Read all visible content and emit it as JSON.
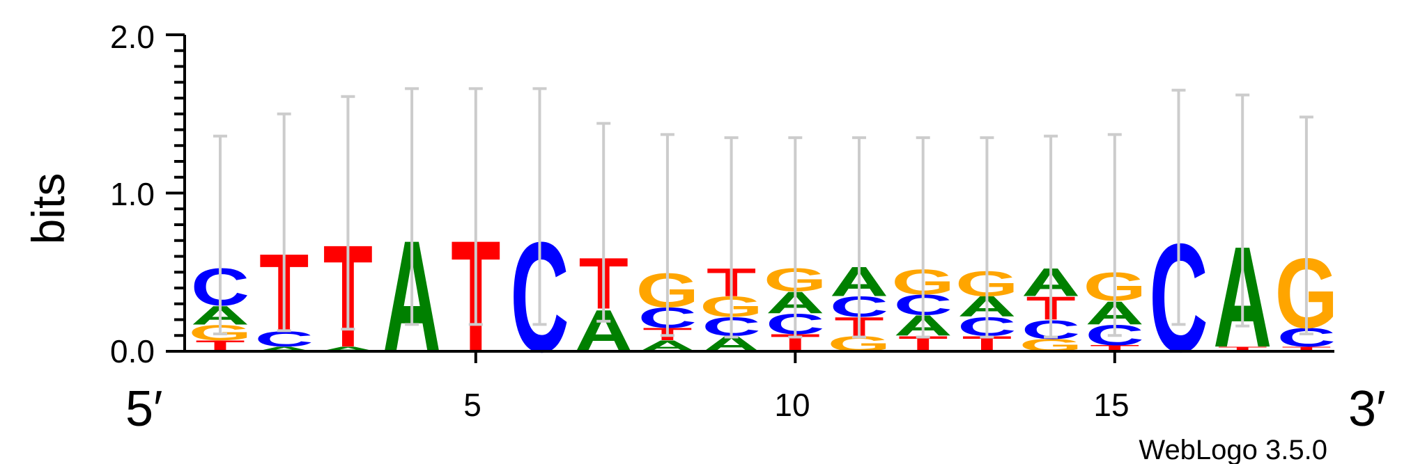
{
  "chart_data": {
    "type": "sequence-logo",
    "ylabel": "bits",
    "ylim": [
      0,
      2.0
    ],
    "y_ticks": [
      "0.0",
      "1.0",
      "2.0"
    ],
    "x_tick_labels": [
      "5",
      "10",
      "15"
    ],
    "x_tick_positions": [
      5,
      10,
      15
    ],
    "end_labels": {
      "left": "5′",
      "right": "3′"
    },
    "credit": "WebLogo 3.5.0",
    "colors": {
      "A": "#008000",
      "C": "#0000ff",
      "G": "#ffa500",
      "T": "#ff0000",
      "error_bar": "#cccccc"
    },
    "positions": [
      {
        "pos": 1,
        "stack": [
          {
            "b": "T",
            "h": 0.07
          },
          {
            "b": "G",
            "h": 0.1
          },
          {
            "b": "A",
            "h": 0.12
          },
          {
            "b": "C",
            "h": 0.24
          }
        ],
        "error_bar": [
          0.11,
          1.36
        ]
      },
      {
        "pos": 2,
        "stack": [
          {
            "b": "A",
            "h": 0.03
          },
          {
            "b": "C",
            "h": 0.1
          },
          {
            "b": "T",
            "h": 0.5
          }
        ],
        "error_bar": [
          0.13,
          1.5
        ]
      },
      {
        "pos": 3,
        "stack": [
          {
            "b": "A",
            "h": 0.03
          },
          {
            "b": "T",
            "h": 0.66
          }
        ],
        "error_bar": [
          0.14,
          1.61
        ]
      },
      {
        "pos": 4,
        "stack": [
          {
            "b": "A",
            "h": 0.72
          }
        ],
        "error_bar": [
          0.17,
          1.66
        ]
      },
      {
        "pos": 5,
        "stack": [
          {
            "b": "T",
            "h": 0.72
          }
        ],
        "error_bar": [
          0.17,
          1.66
        ]
      },
      {
        "pos": 6,
        "stack": [
          {
            "b": "C",
            "h": 0.71
          }
        ],
        "error_bar": [
          0.17,
          1.66
        ]
      },
      {
        "pos": 7,
        "stack": [
          {
            "b": "A",
            "h": 0.27
          },
          {
            "b": "T",
            "h": 0.33
          }
        ],
        "error_bar": [
          0.19,
          1.44
        ]
      },
      {
        "pos": 8,
        "stack": [
          {
            "b": "A",
            "h": 0.07
          },
          {
            "b": "T",
            "h": 0.08
          },
          {
            "b": "C",
            "h": 0.13
          },
          {
            "b": "G",
            "h": 0.22
          }
        ],
        "error_bar": [
          0.1,
          1.37
        ]
      },
      {
        "pos": 9,
        "stack": [
          {
            "b": "A",
            "h": 0.1
          },
          {
            "b": "C",
            "h": 0.12
          },
          {
            "b": "G",
            "h": 0.13
          },
          {
            "b": "T",
            "h": 0.18
          }
        ],
        "error_bar": [
          0.09,
          1.35
        ]
      },
      {
        "pos": 10,
        "stack": [
          {
            "b": "T",
            "h": 0.11
          },
          {
            "b": "C",
            "h": 0.13
          },
          {
            "b": "A",
            "h": 0.14
          },
          {
            "b": "G",
            "h": 0.15
          }
        ],
        "error_bar": [
          0.09,
          1.35
        ]
      },
      {
        "pos": 11,
        "stack": [
          {
            "b": "G",
            "h": 0.1
          },
          {
            "b": "T",
            "h": 0.12
          },
          {
            "b": "C",
            "h": 0.13
          },
          {
            "b": "A",
            "h": 0.19
          }
        ],
        "error_bar": [
          0.09,
          1.35
        ]
      },
      {
        "pos": 12,
        "stack": [
          {
            "b": "T",
            "h": 0.1
          },
          {
            "b": "A",
            "h": 0.13
          },
          {
            "b": "C",
            "h": 0.13
          },
          {
            "b": "G",
            "h": 0.16
          }
        ],
        "error_bar": [
          0.09,
          1.35
        ]
      },
      {
        "pos": 13,
        "stack": [
          {
            "b": "T",
            "h": 0.1
          },
          {
            "b": "C",
            "h": 0.12
          },
          {
            "b": "A",
            "h": 0.13
          },
          {
            "b": "G",
            "h": 0.16
          }
        ],
        "error_bar": [
          0.09,
          1.35
        ]
      },
      {
        "pos": 14,
        "stack": [
          {
            "b": "G",
            "h": 0.08
          },
          {
            "b": "C",
            "h": 0.12
          },
          {
            "b": "T",
            "h": 0.15
          },
          {
            "b": "A",
            "h": 0.18
          }
        ],
        "error_bar": [
          0.09,
          1.36
        ]
      },
      {
        "pos": 15,
        "stack": [
          {
            "b": "T",
            "h": 0.04
          },
          {
            "b": "C",
            "h": 0.13
          },
          {
            "b": "A",
            "h": 0.15
          },
          {
            "b": "G",
            "h": 0.18
          }
        ],
        "error_bar": [
          0.1,
          1.37
        ]
      },
      {
        "pos": 16,
        "stack": [
          {
            "b": "C",
            "h": 0.7
          }
        ],
        "error_bar": [
          0.17,
          1.65
        ]
      },
      {
        "pos": 17,
        "stack": [
          {
            "b": "T",
            "h": 0.03
          },
          {
            "b": "A",
            "h": 0.65
          }
        ],
        "error_bar": [
          0.16,
          1.62
        ]
      },
      {
        "pos": 18,
        "stack": [
          {
            "b": "T",
            "h": 0.03
          },
          {
            "b": "C",
            "h": 0.12
          },
          {
            "b": "G",
            "h": 0.45
          }
        ],
        "error_bar": [
          0.11,
          1.48
        ]
      }
    ]
  }
}
